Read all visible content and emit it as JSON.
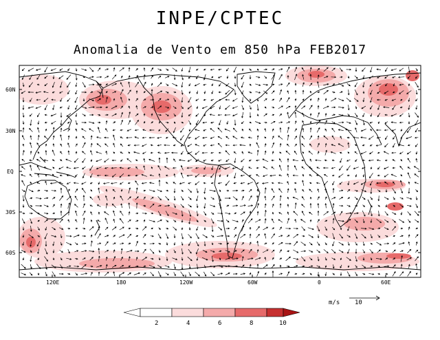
{
  "header": {
    "title": "INPE/CPTEC",
    "subtitle": "Anomalia de Vento em 850 hPa FEB2017"
  },
  "map": {
    "lat_labels": [
      "60N",
      "30N",
      "EQ",
      "30S",
      "60S"
    ],
    "lon_labels": [
      "120E",
      "180",
      "120W",
      "60W",
      "0",
      "60E"
    ],
    "colors": {
      "land_outline": "#000000",
      "vector": "#000000",
      "shade_2_4": "#fbdcdc",
      "shade_4_6": "#f4aaaa",
      "shade_6_8": "#e66a6a",
      "shade_8_10": "#c63030",
      "shade_10_plus": "#a81414"
    }
  },
  "reference_vector": {
    "unit": "m/s",
    "value": "10"
  },
  "colorbar": {
    "ticks": [
      "2",
      "4",
      "6",
      "8",
      "10"
    ]
  }
}
